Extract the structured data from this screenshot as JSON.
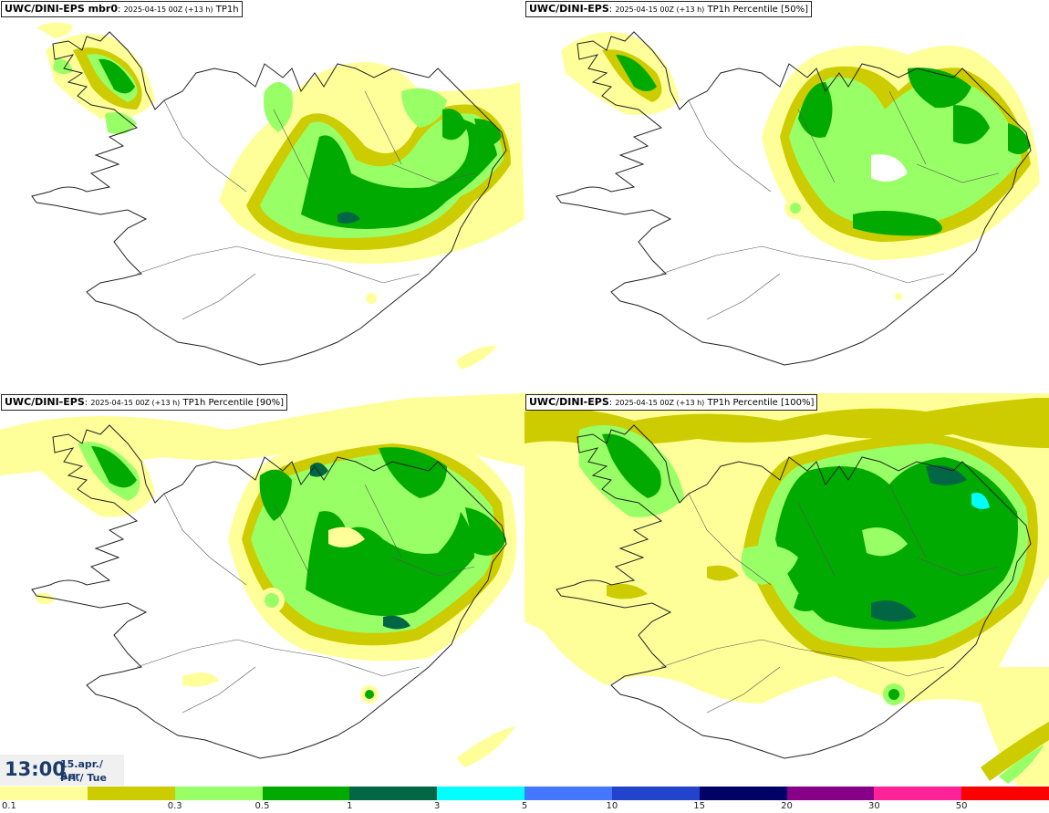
{
  "panels": [
    {
      "model": "UWC/DINI-EPS mbr0",
      "run": "2025-04-15 00Z (+13 h)",
      "field": "TP1h"
    },
    {
      "model": "UWC/DINI-EPS",
      "run": "2025-04-15 00Z (+13 h)",
      "field": "TP1h Percentile [50%]"
    },
    {
      "model": "UWC/DINI-EPS",
      "run": "2025-04-15 00Z (+13 h)",
      "field": "TP1h Percentile [90%]"
    },
    {
      "model": "UWC/DINI-EPS",
      "run": "2025-04-15 00Z (+13 h)",
      "field": "TP1h Percentile [100%]"
    }
  ],
  "valid_time": {
    "time": "13:00",
    "date": "15.apr./ Apr",
    "weekday": "Þri./ Tue"
  },
  "colorbar": {
    "colors": [
      "#ffff99",
      "#cccc00",
      "#99ff66",
      "#00aa00",
      "#006644",
      "#00ffff",
      "#4477ff",
      "#2244cc",
      "#000066",
      "#880088",
      "#ff2299",
      "#ff0000"
    ],
    "labels": [
      "0.1",
      "0.3",
      "0.5",
      "1",
      "3",
      "5",
      "10",
      "15",
      "20",
      "30",
      "50"
    ]
  },
  "map_colors": {
    "coast": "#222222",
    "land": "#ffffff"
  }
}
